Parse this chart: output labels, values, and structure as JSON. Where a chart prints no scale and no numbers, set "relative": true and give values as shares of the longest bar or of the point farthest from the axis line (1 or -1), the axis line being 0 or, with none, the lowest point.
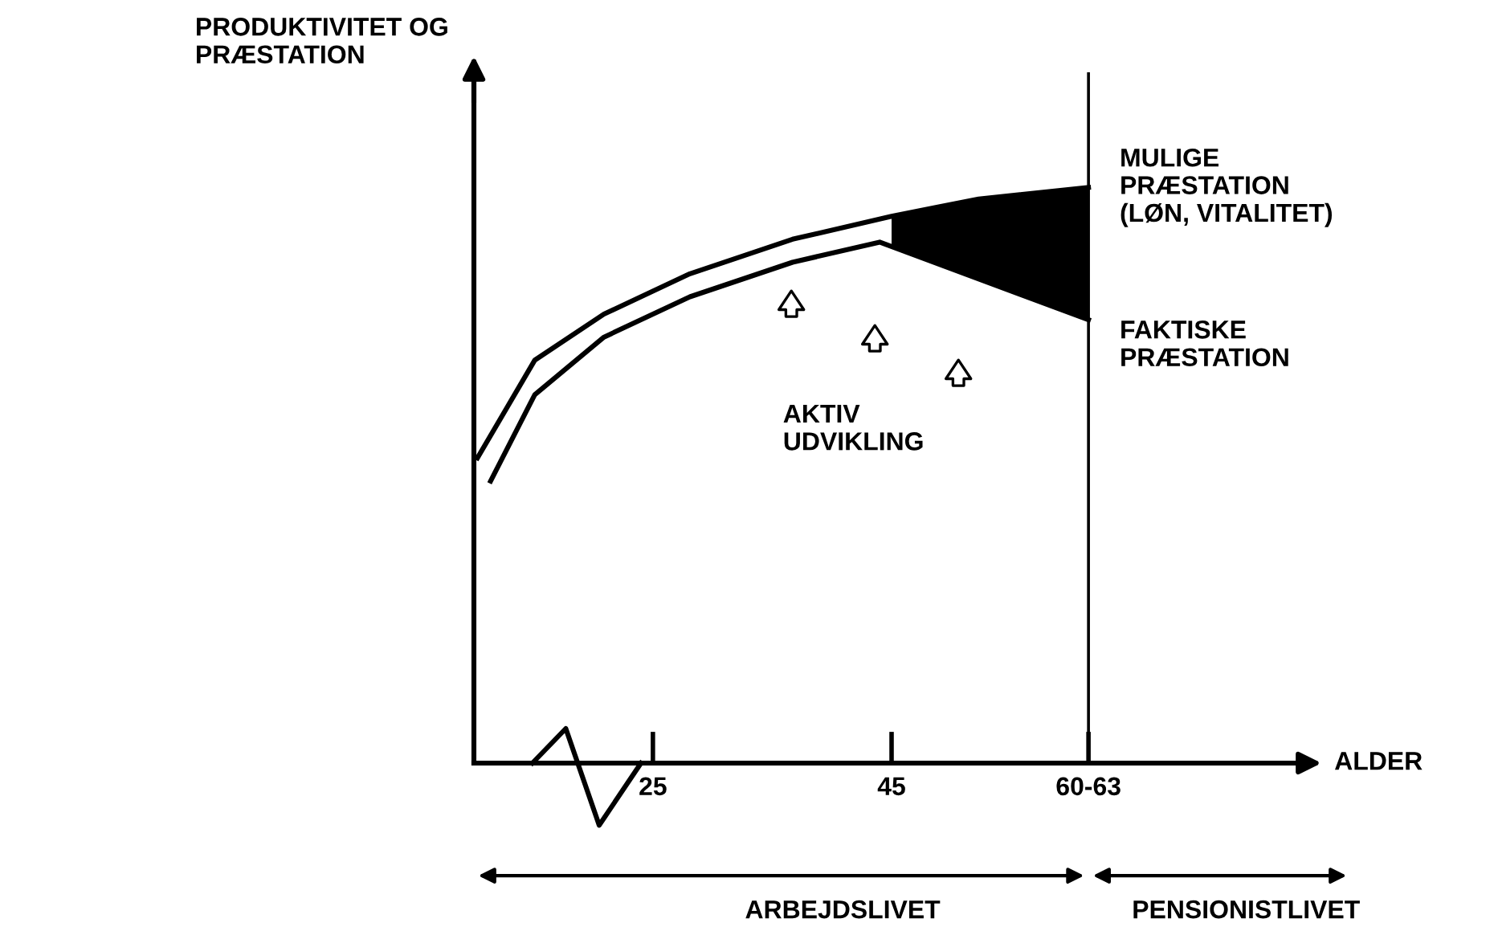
{
  "chart_data": {
    "type": "line",
    "relative": true,
    "ylabel": "PRODUKTIVITET OG\nPRÆSTATION",
    "xlabel": "ALDER",
    "xlim": [
      10,
      80
    ],
    "xticks": [
      25,
      45,
      {
        "value": 61.5,
        "label": "60-63"
      }
    ],
    "tick_labels": "x",
    "grid": false,
    "legend": false,
    "marker": "none",
    "line_style": "solid",
    "series": [
      {
        "name": "MULIGE\nPRÆSTATION\n(LØN, VITALITET)",
        "color": "#000000",
        "x": [
          10.3,
          15.1,
          20.9,
          28.1,
          36.7,
          45,
          52.3,
          61.5
        ],
        "values": [
          0.53,
          0.7,
          0.78,
          0.85,
          0.91,
          0.95,
          0.98,
          1.0
        ],
        "lower": [
          null,
          null,
          null,
          null,
          null,
          0.897,
          0.841,
          0.77
        ],
        "upper": [
          null,
          null,
          null,
          null,
          null,
          0.95,
          0.98,
          1.0
        ]
      },
      {
        "name": "FAKTISKE\nPRÆSTATION",
        "color": "#000000",
        "x": [
          11.4,
          15.1,
          20.9,
          28.1,
          36.7,
          44,
          61.5
        ],
        "values": [
          0.49,
          0.64,
          0.74,
          0.81,
          0.87,
          0.905,
          0.77
        ]
      }
    ],
    "ref_lines": [
      {
        "axis": "x",
        "value": 61.5,
        "label": null,
        "color": "#000000"
      }
    ],
    "annotations": [
      "AKTIV\nUDVIKLING",
      "ARBEJDSLIVET",
      "PENSIONISTLIVET"
    ]
  }
}
